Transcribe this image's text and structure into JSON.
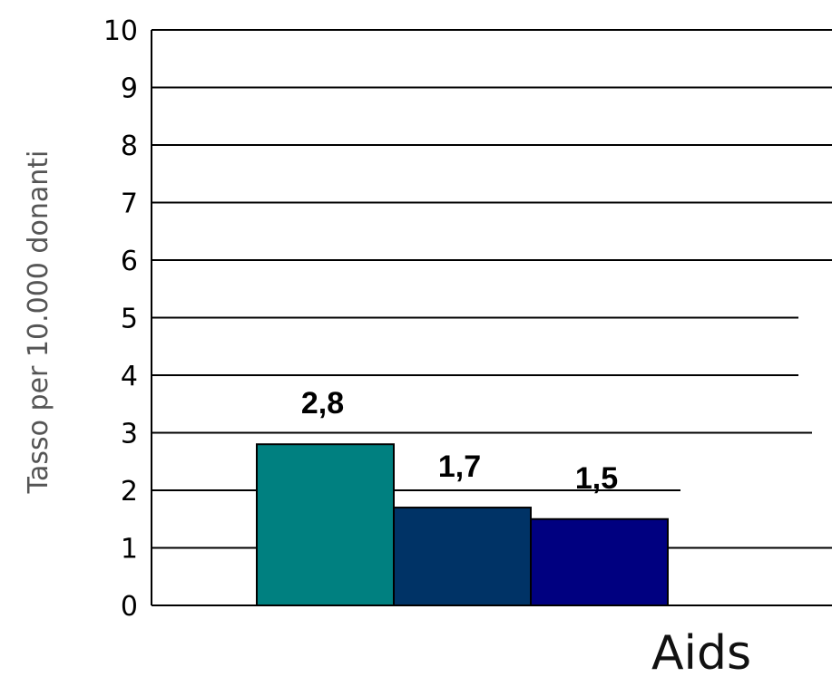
{
  "chart_data": {
    "type": "bar",
    "categories": [
      "Aids"
    ],
    "series": [
      {
        "values": [
          2.8
        ],
        "color": "#008080",
        "label": "2,8"
      },
      {
        "values": [
          1.7
        ],
        "color": "#003366",
        "label": "1,7"
      },
      {
        "values": [
          1.5
        ],
        "color": "#000080",
        "label": "1,5"
      }
    ],
    "title": "",
    "xlabel": "",
    "ylabel": "Tasso per 10.000 donanti",
    "ylim": [
      0,
      10
    ],
    "yticks": [
      "0",
      "1",
      "2",
      "3",
      "4",
      "5",
      "6",
      "7",
      "8",
      "9",
      "10"
    ],
    "grid": true,
    "legend": "none"
  }
}
